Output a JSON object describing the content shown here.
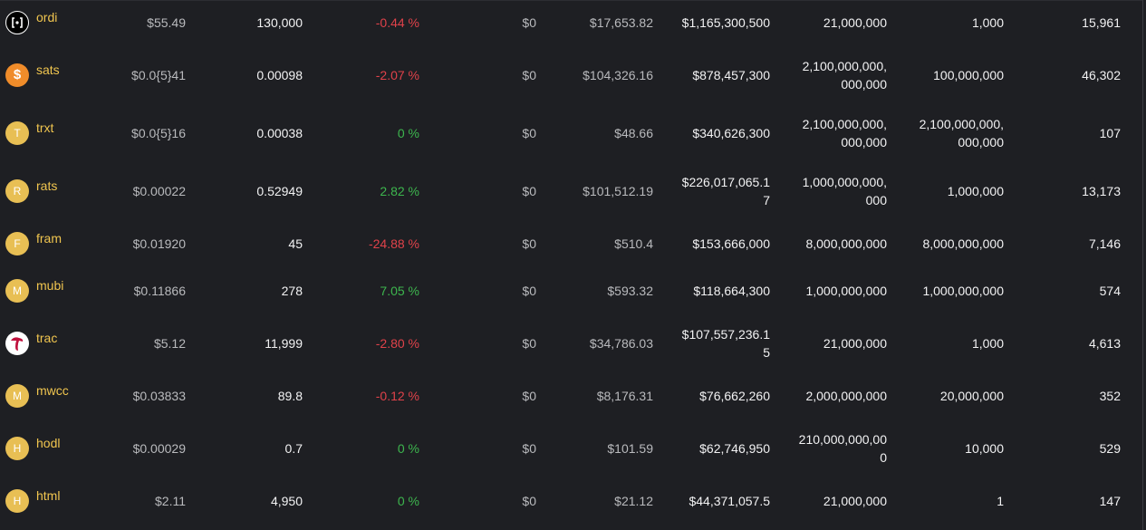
{
  "rows": [
    {
      "name": "ordi",
      "avatar_letter": "",
      "icon": "ordi-logo-icon",
      "price": "$55.49",
      "sats": "130,000",
      "change": "-0.44 %",
      "change_dir": "neg",
      "vol": "$0",
      "total_vol": "$17,653.82",
      "mcap": "$1,165,300,500",
      "supply": "21,000,000",
      "limit": "1,000",
      "holders": "15,961"
    },
    {
      "name": "sats",
      "avatar_letter": "$",
      "icon": "sats-dollar-icon",
      "price": "$0.0{5}41",
      "sats": "0.00098",
      "change": "-2.07 %",
      "change_dir": "neg",
      "vol": "$0",
      "total_vol": "$104,326.16",
      "mcap": "$878,457,300",
      "supply": "2,100,000,000,\n000,000",
      "limit": "100,000,000",
      "holders": "46,302"
    },
    {
      "name": "trxt",
      "avatar_letter": "T",
      "icon": "letter-avatar-icon",
      "price": "$0.0{5}16",
      "sats": "0.00038",
      "change": "0 %",
      "change_dir": "zero",
      "vol": "$0",
      "total_vol": "$48.66",
      "mcap": "$340,626,300",
      "supply": "2,100,000,000,\n000,000",
      "limit": "2,100,000,000,\n000,000",
      "holders": "107"
    },
    {
      "name": "rats",
      "avatar_letter": "R",
      "icon": "letter-avatar-icon",
      "price": "$0.00022",
      "sats": "0.52949",
      "change": "2.82 %",
      "change_dir": "pos",
      "vol": "$0",
      "total_vol": "$101,512.19",
      "mcap": "$226,017,065.1\n7",
      "supply": "1,000,000,000,\n000",
      "limit": "1,000,000",
      "holders": "13,173"
    },
    {
      "name": "fram",
      "avatar_letter": "F",
      "icon": "letter-avatar-icon",
      "price": "$0.01920",
      "sats": "45",
      "change": "-24.88 %",
      "change_dir": "neg",
      "vol": "$0",
      "total_vol": "$510.4",
      "mcap": "$153,666,000",
      "supply": "8,000,000,000",
      "limit": "8,000,000,000",
      "holders": "7,146"
    },
    {
      "name": "mubi",
      "avatar_letter": "M",
      "icon": "letter-avatar-icon",
      "price": "$0.11866",
      "sats": "278",
      "change": "7.05 %",
      "change_dir": "pos",
      "vol": "$0",
      "total_vol": "$593.32",
      "mcap": "$118,664,300",
      "supply": "1,000,000,000",
      "limit": "1,000,000,000",
      "holders": "574"
    },
    {
      "name": "trac",
      "avatar_letter": "",
      "icon": "trac-logo-icon",
      "price": "$5.12",
      "sats": "11,999",
      "change": "-2.80 %",
      "change_dir": "neg",
      "vol": "$0",
      "total_vol": "$34,786.03",
      "mcap": "$107,557,236.1\n5",
      "supply": "21,000,000",
      "limit": "1,000",
      "holders": "4,613"
    },
    {
      "name": "mwcc",
      "avatar_letter": "M",
      "icon": "letter-avatar-icon",
      "price": "$0.03833",
      "sats": "89.8",
      "change": "-0.12 %",
      "change_dir": "neg",
      "vol": "$0",
      "total_vol": "$8,176.31",
      "mcap": "$76,662,260",
      "supply": "2,000,000,000",
      "limit": "20,000,000",
      "holders": "352"
    },
    {
      "name": "hodl",
      "avatar_letter": "H",
      "icon": "letter-avatar-icon",
      "price": "$0.00029",
      "sats": "0.7",
      "change": "0 %",
      "change_dir": "zero",
      "vol": "$0",
      "total_vol": "$101.59",
      "mcap": "$62,746,950",
      "supply": "210,000,000,00\n0",
      "limit": "10,000",
      "holders": "529"
    },
    {
      "name": "html",
      "avatar_letter": "H",
      "icon": "letter-avatar-icon",
      "price": "$2.11",
      "sats": "4,950",
      "change": "0 %",
      "change_dir": "zero",
      "vol": "$0",
      "total_vol": "$21.12",
      "mcap": "$44,371,057.5",
      "supply": "21,000,000",
      "limit": "1",
      "holders": "147"
    }
  ],
  "colors": {
    "background": "#1e1f23",
    "name": "#f0c54f",
    "negative": "#e0424a",
    "positive": "#3db64e",
    "avatar": "#e8bf54"
  }
}
